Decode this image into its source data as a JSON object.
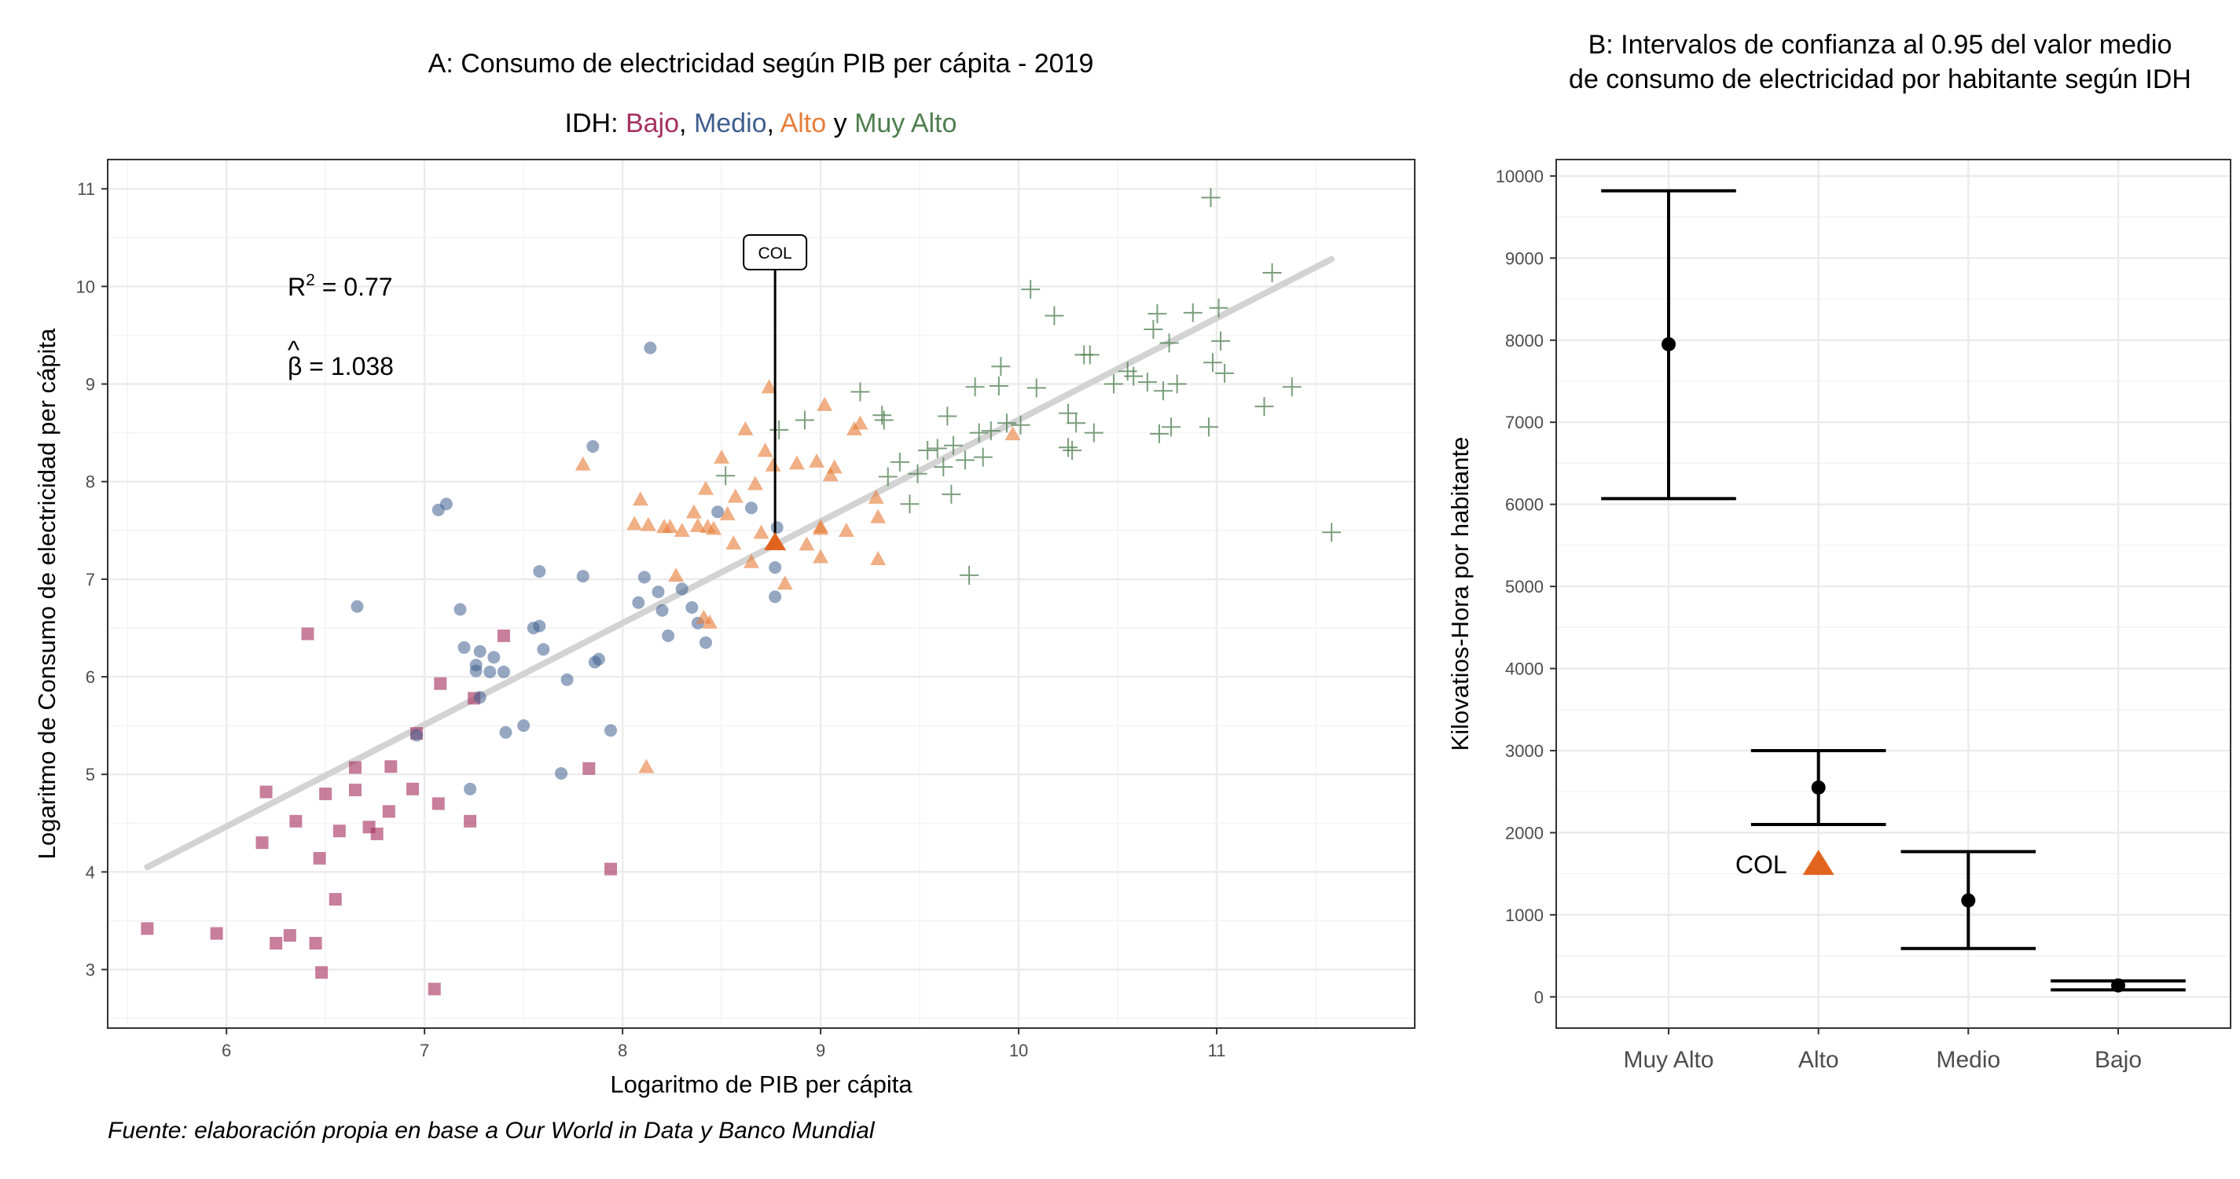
{
  "colors": {
    "bajo": "#A4305E",
    "medio": "#3E5E8E",
    "alto": "#E67E3A",
    "muy_alto": "#4E7E4E",
    "col": "#E1641E",
    "regression": "#d3d3d3",
    "errorbar": "#000000"
  },
  "caption": "Fuente: elaboración propia en base a Our World in Data y Banco Mundial",
  "chart_data": [
    {
      "type": "scatter",
      "title": "A: Consumo de electricidad según PIB per cápita - 2019",
      "subtitle_prefix": "IDH: ",
      "subtitle_groups": [
        {
          "label": "Bajo",
          "color": "#A4305E",
          "sep": ", "
        },
        {
          "label": "Medio",
          "color": "#3E5E8E",
          "sep": ", "
        },
        {
          "label": "Alto",
          "color": "#E67E3A",
          "sep": " y "
        },
        {
          "label": "Muy Alto",
          "color": "#4E7E4E",
          "sep": ""
        }
      ],
      "xlabel": "Logaritmo de PIB per cápita",
      "ylabel": "Logaritmo de Consumo de electricidad per cápita",
      "xlim": [
        5.4,
        12.0
      ],
      "ylim": [
        2.4,
        11.3
      ],
      "xticks": [
        6,
        7,
        8,
        9,
        10,
        11
      ],
      "yticks": [
        3,
        4,
        5,
        6,
        7,
        8,
        9,
        10,
        11
      ],
      "grid": true,
      "annotations": {
        "r2_base": "R",
        "r2_sup": "2",
        "r2_value": " = 0.77",
        "beta_hat": "^",
        "beta_symbol": "β",
        "beta_value": " = 1.038"
      },
      "regression": {
        "x": [
          5.6,
          11.58
        ],
        "y": [
          4.05,
          10.28
        ]
      },
      "col_label": "COL",
      "col_point": {
        "x": 8.77,
        "y": 7.37
      },
      "col_label_pos": {
        "x": 8.77,
        "y": 10.35
      },
      "series": [
        {
          "name": "Bajo",
          "marker": "square",
          "points": [
            [
              5.6,
              3.42
            ],
            [
              5.95,
              3.37
            ],
            [
              6.18,
              4.3
            ],
            [
              6.2,
              4.82
            ],
            [
              6.25,
              3.27
            ],
            [
              6.32,
              3.35
            ],
            [
              6.35,
              4.52
            ],
            [
              6.41,
              6.44
            ],
            [
              6.45,
              3.27
            ],
            [
              6.47,
              4.14
            ],
            [
              6.48,
              2.97
            ],
            [
              6.5,
              4.8
            ],
            [
              6.55,
              3.72
            ],
            [
              6.57,
              4.42
            ],
            [
              6.65,
              5.07
            ],
            [
              6.65,
              4.84
            ],
            [
              6.72,
              4.46
            ],
            [
              6.76,
              4.39
            ],
            [
              6.82,
              4.62
            ],
            [
              6.83,
              5.08
            ],
            [
              6.94,
              4.85
            ],
            [
              6.96,
              5.42
            ],
            [
              7.05,
              2.8
            ],
            [
              7.07,
              4.7
            ],
            [
              7.08,
              5.93
            ],
            [
              7.23,
              4.52
            ],
            [
              7.25,
              5.78
            ],
            [
              7.4,
              6.42
            ],
            [
              7.83,
              5.06
            ],
            [
              7.94,
              4.03
            ]
          ]
        },
        {
          "name": "Medio",
          "marker": "circle",
          "points": [
            [
              6.66,
              6.72
            ],
            [
              6.96,
              5.4
            ],
            [
              7.07,
              7.71
            ],
            [
              7.11,
              7.77
            ],
            [
              7.18,
              6.69
            ],
            [
              7.2,
              6.3
            ],
            [
              7.23,
              4.85
            ],
            [
              7.26,
              6.06
            ],
            [
              7.26,
              6.12
            ],
            [
              7.28,
              6.26
            ],
            [
              7.28,
              5.79
            ],
            [
              7.33,
              6.05
            ],
            [
              7.35,
              6.2
            ],
            [
              7.4,
              6.05
            ],
            [
              7.41,
              5.43
            ],
            [
              7.5,
              5.5
            ],
            [
              7.55,
              6.5
            ],
            [
              7.58,
              7.08
            ],
            [
              7.58,
              6.52
            ],
            [
              7.6,
              6.28
            ],
            [
              7.69,
              5.01
            ],
            [
              7.72,
              5.97
            ],
            [
              7.8,
              7.03
            ],
            [
              7.85,
              8.36
            ],
            [
              7.86,
              6.15
            ],
            [
              7.88,
              6.18
            ],
            [
              7.94,
              5.45
            ],
            [
              8.08,
              6.76
            ],
            [
              8.11,
              7.02
            ],
            [
              8.14,
              9.37
            ],
            [
              8.18,
              6.87
            ],
            [
              8.2,
              6.68
            ],
            [
              8.23,
              6.42
            ],
            [
              8.3,
              6.9
            ],
            [
              8.35,
              6.71
            ],
            [
              8.38,
              6.55
            ],
            [
              8.42,
              6.35
            ],
            [
              8.48,
              7.69
            ],
            [
              8.65,
              7.73
            ],
            [
              8.77,
              7.12
            ],
            [
              8.77,
              6.82
            ],
            [
              8.78,
              7.53
            ]
          ]
        },
        {
          "name": "Alto",
          "marker": "triangle",
          "points": [
            [
              7.8,
              8.17
            ],
            [
              8.06,
              7.56
            ],
            [
              8.09,
              7.81
            ],
            [
              8.12,
              5.07
            ],
            [
              8.13,
              7.55
            ],
            [
              8.21,
              7.53
            ],
            [
              8.24,
              7.53
            ],
            [
              8.27,
              7.03
            ],
            [
              8.3,
              7.49
            ],
            [
              8.36,
              7.68
            ],
            [
              8.38,
              7.54
            ],
            [
              8.41,
              6.6
            ],
            [
              8.42,
              7.92
            ],
            [
              8.43,
              7.53
            ],
            [
              8.44,
              6.55
            ],
            [
              8.46,
              7.51
            ],
            [
              8.5,
              8.24
            ],
            [
              8.53,
              7.66
            ],
            [
              8.56,
              7.36
            ],
            [
              8.57,
              7.84
            ],
            [
              8.62,
              8.53
            ],
            [
              8.65,
              7.17
            ],
            [
              8.67,
              7.97
            ],
            [
              8.7,
              7.47
            ],
            [
              8.72,
              8.31
            ],
            [
              8.74,
              8.96
            ],
            [
              8.76,
              8.16
            ],
            [
              8.82,
              6.95
            ],
            [
              8.88,
              8.18
            ],
            [
              8.93,
              7.35
            ],
            [
              8.98,
              8.2
            ],
            [
              9.0,
              7.51
            ],
            [
              9.0,
              7.22
            ],
            [
              9.0,
              7.53
            ],
            [
              9.02,
              8.78
            ],
            [
              9.05,
              8.06
            ],
            [
              9.07,
              8.14
            ],
            [
              9.13,
              7.49
            ],
            [
              9.17,
              8.53
            ],
            [
              9.2,
              8.59
            ],
            [
              9.28,
              7.83
            ],
            [
              9.29,
              7.2
            ],
            [
              9.29,
              7.63
            ],
            [
              9.97,
              8.48
            ]
          ]
        },
        {
          "name": "Muy Alto",
          "marker": "plus",
          "points": [
            [
              8.52,
              8.06
            ],
            [
              8.79,
              8.53
            ],
            [
              8.92,
              8.63
            ],
            [
              9.2,
              8.92
            ],
            [
              9.31,
              8.68
            ],
            [
              9.32,
              8.63
            ],
            [
              9.34,
              8.05
            ],
            [
              9.4,
              8.2
            ],
            [
              9.45,
              7.77
            ],
            [
              9.49,
              8.08
            ],
            [
              9.54,
              8.32
            ],
            [
              9.59,
              8.34
            ],
            [
              9.62,
              8.15
            ],
            [
              9.64,
              8.67
            ],
            [
              9.66,
              7.87
            ],
            [
              9.67,
              8.37
            ],
            [
              9.73,
              8.22
            ],
            [
              9.75,
              7.04
            ],
            [
              9.78,
              8.97
            ],
            [
              9.8,
              8.5
            ],
            [
              9.82,
              8.25
            ],
            [
              9.86,
              8.52
            ],
            [
              9.9,
              8.98
            ],
            [
              9.91,
              9.18
            ],
            [
              9.94,
              8.6
            ],
            [
              10.01,
              8.58
            ],
            [
              10.06,
              9.97
            ],
            [
              10.09,
              8.96
            ],
            [
              10.18,
              9.7
            ],
            [
              10.25,
              8.7
            ],
            [
              10.25,
              8.35
            ],
            [
              10.27,
              8.32
            ],
            [
              10.29,
              8.6
            ],
            [
              10.33,
              9.3
            ],
            [
              10.36,
              9.3
            ],
            [
              10.38,
              8.5
            ],
            [
              10.48,
              9.0
            ],
            [
              10.55,
              9.13
            ],
            [
              10.58,
              9.08
            ],
            [
              10.65,
              9.02
            ],
            [
              10.68,
              9.56
            ],
            [
              10.7,
              9.72
            ],
            [
              10.71,
              8.49
            ],
            [
              10.73,
              8.93
            ],
            [
              10.76,
              9.42
            ],
            [
              10.77,
              8.56
            ],
            [
              10.8,
              9.0
            ],
            [
              10.88,
              9.73
            ],
            [
              10.96,
              8.56
            ],
            [
              10.97,
              10.91
            ],
            [
              10.98,
              9.22
            ],
            [
              11.01,
              9.78
            ],
            [
              11.02,
              9.44
            ],
            [
              11.04,
              9.11
            ],
            [
              11.24,
              8.77
            ],
            [
              11.28,
              10.14
            ],
            [
              11.38,
              8.97
            ],
            [
              11.58,
              7.48
            ]
          ]
        }
      ]
    },
    {
      "type": "errorbar",
      "title_line1": "B: Intervalos de confianza al 0.95 del valor medio",
      "title_line2": "de consumo de electricidad por habitante según IDH",
      "ylabel": "Kilovatios-Hora por habitante",
      "xlabel": "",
      "categories": [
        "Muy Alto",
        "Alto",
        "Medio",
        "Bajo"
      ],
      "means": [
        7950,
        2550,
        1175,
        140
      ],
      "lower": [
        6070,
        2100,
        590,
        85
      ],
      "upper": [
        9820,
        3000,
        1770,
        195
      ],
      "ylim": [
        -380,
        10200
      ],
      "yticks": [
        0,
        1000,
        2000,
        3000,
        4000,
        5000,
        6000,
        7000,
        8000,
        9000,
        10000
      ],
      "grid": true,
      "col_label": "COL",
      "col_point": {
        "category": "Alto",
        "value": 1610
      }
    }
  ]
}
